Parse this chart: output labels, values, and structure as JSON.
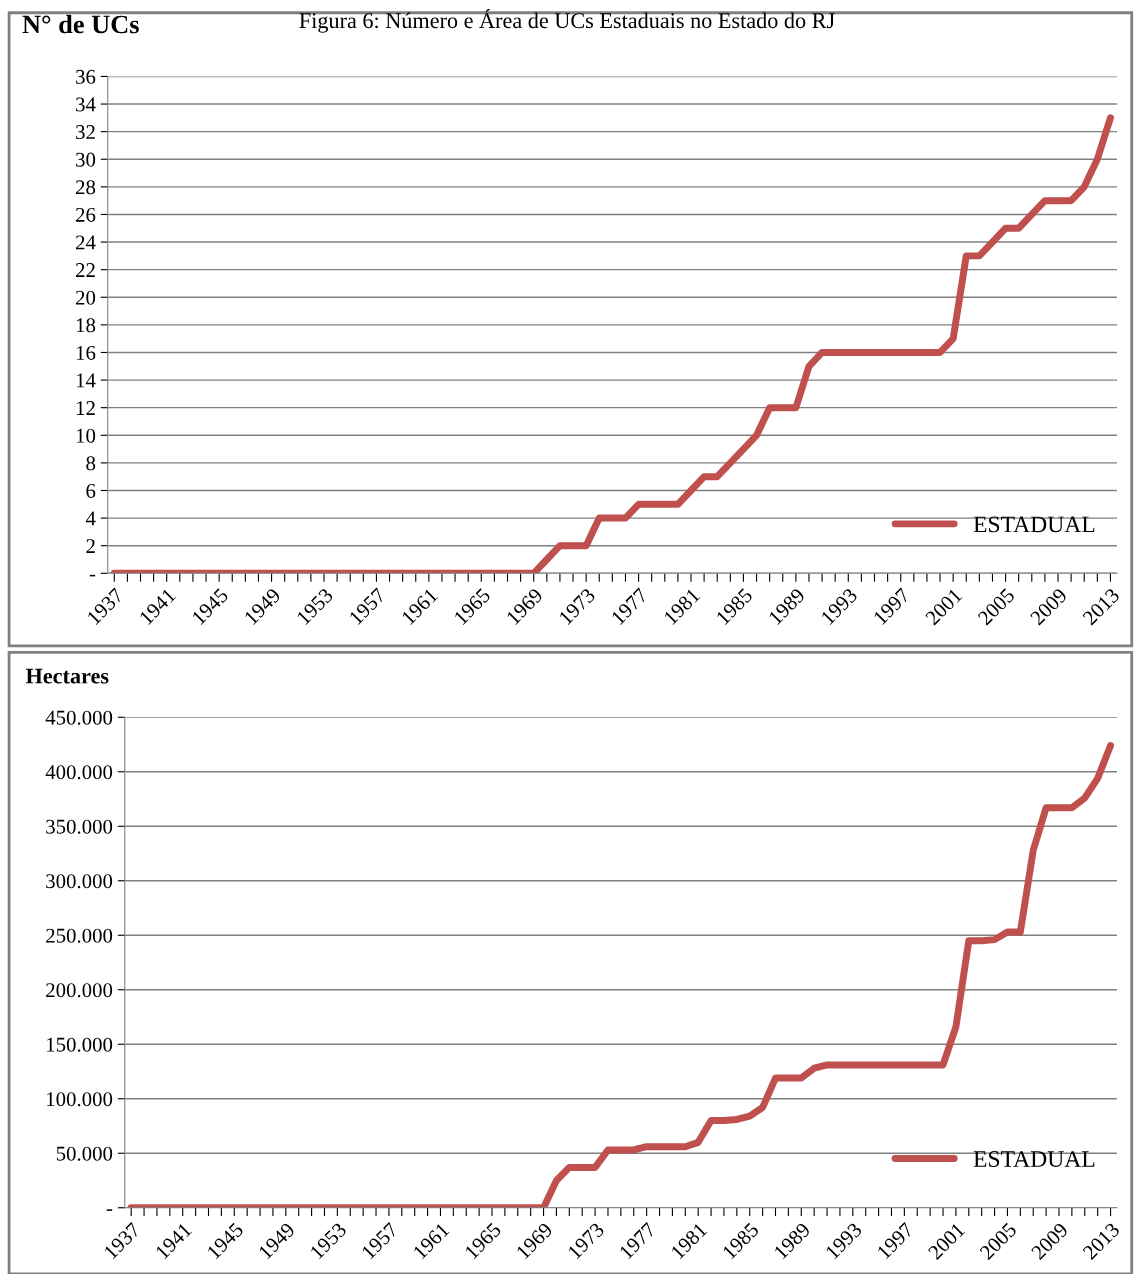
{
  "chart_data": [
    {
      "type": "line",
      "title": "Figura 6: Número e Área de UCs Estaduais no Estado do RJ",
      "ylabel": "N° de UCs",
      "categories": [
        "1937",
        null,
        null,
        null,
        "1941",
        null,
        null,
        null,
        "1945",
        null,
        null,
        null,
        "1949",
        null,
        null,
        null,
        "1953",
        null,
        null,
        null,
        "1957",
        null,
        null,
        null,
        "1961",
        null,
        null,
        null,
        "1965",
        null,
        null,
        null,
        "1969",
        null,
        null,
        null,
        "1973",
        null,
        null,
        null,
        "1977",
        null,
        null,
        null,
        "1981",
        null,
        null,
        null,
        "1985",
        null,
        null,
        null,
        "1989",
        null,
        null,
        null,
        "1993",
        null,
        null,
        null,
        "1997",
        null,
        null,
        null,
        "2001",
        null,
        null,
        null,
        "2005",
        null,
        null,
        null,
        "2009",
        null,
        null,
        null,
        "2013"
      ],
      "series": [
        {
          "name": "ESTADUAL",
          "color": "#c0504d",
          "values": [
            0,
            0,
            0,
            0,
            0,
            0,
            0,
            0,
            0,
            0,
            0,
            0,
            0,
            0,
            0,
            0,
            0,
            0,
            0,
            0,
            0,
            0,
            0,
            0,
            0,
            0,
            0,
            0,
            0,
            0,
            0,
            0,
            0,
            1,
            2,
            2,
            2,
            4,
            4,
            4,
            5,
            5,
            5,
            5,
            6,
            7,
            7,
            8,
            9,
            10,
            12,
            12,
            12,
            15,
            16,
            16,
            16,
            16,
            16,
            16,
            16,
            16,
            16,
            16,
            17,
            23,
            23,
            24,
            25,
            25,
            26,
            27,
            27,
            27,
            28,
            30,
            33
          ]
        }
      ],
      "ylim": [
        0,
        36
      ],
      "yticks": [
        {
          "value": 0,
          "label": "-"
        },
        2,
        4,
        6,
        8,
        10,
        12,
        14,
        16,
        18,
        20,
        22,
        24,
        26,
        28,
        30,
        32,
        34,
        36
      ],
      "grid": "y",
      "legend": "bottom right",
      "marker": "none",
      "line_style": "solid"
    },
    {
      "type": "line",
      "ylabel": "Hectares",
      "categories": [
        "1937",
        null,
        null,
        null,
        "1941",
        null,
        null,
        null,
        "1945",
        null,
        null,
        null,
        "1949",
        null,
        null,
        null,
        "1953",
        null,
        null,
        null,
        "1957",
        null,
        null,
        null,
        "1961",
        null,
        null,
        null,
        "1965",
        null,
        null,
        null,
        "1969",
        null,
        null,
        null,
        "1973",
        null,
        null,
        null,
        "1977",
        null,
        null,
        null,
        "1981",
        null,
        null,
        null,
        "1985",
        null,
        null,
        null,
        "1989",
        null,
        null,
        null,
        "1993",
        null,
        null,
        null,
        "1997",
        null,
        null,
        null,
        "2001",
        null,
        null,
        null,
        "2005",
        null,
        null,
        null,
        "2009",
        null,
        null,
        null,
        "2013"
      ],
      "series": [
        {
          "name": "ESTADUAL",
          "color": "#c0504d",
          "values": [
            0,
            0,
            0,
            0,
            0,
            0,
            0,
            0,
            0,
            0,
            0,
            0,
            0,
            0,
            0,
            0,
            0,
            0,
            0,
            0,
            0,
            0,
            0,
            0,
            0,
            0,
            0,
            0,
            0,
            0,
            0,
            0,
            0,
            25000,
            37000,
            37000,
            37000,
            53000,
            53000,
            53000,
            56000,
            56000,
            56000,
            56000,
            60000,
            80000,
            80000,
            81000,
            84000,
            92000,
            119000,
            119000,
            119000,
            128000,
            131000,
            131000,
            131000,
            131000,
            131000,
            131000,
            131000,
            131000,
            131000,
            131000,
            166000,
            245000,
            245000,
            246000,
            253000,
            253000,
            328000,
            367000,
            367000,
            367000,
            376000,
            394000,
            424000
          ]
        }
      ],
      "ylim": [
        0,
        450000
      ],
      "yticks": [
        {
          "value": 0,
          "label": "-"
        },
        {
          "value": 50000,
          "label": "50.000"
        },
        {
          "value": 100000,
          "label": "100.000"
        },
        {
          "value": 150000,
          "label": "150.000"
        },
        {
          "value": 200000,
          "label": "200.000"
        },
        {
          "value": 250000,
          "label": "250.000"
        },
        {
          "value": 300000,
          "label": "300.000"
        },
        {
          "value": 350000,
          "label": "350.000"
        },
        {
          "value": 400000,
          "label": "400.000"
        },
        {
          "value": 450000,
          "label": "450.000"
        }
      ],
      "grid": "y",
      "legend": "bottom right",
      "marker": "none",
      "line_style": "solid"
    }
  ]
}
